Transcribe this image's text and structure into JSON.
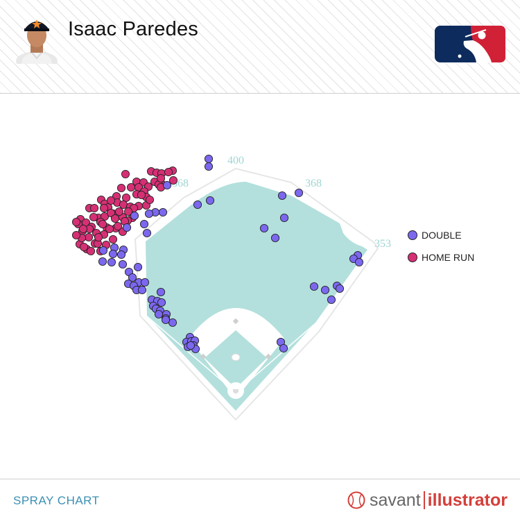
{
  "header": {
    "player_name": "Isaac Paredes"
  },
  "footer": {
    "chart_label": "SPRAY CHART",
    "brand_part1": "savant",
    "brand_part2": "illustrator"
  },
  "colors": {
    "double": "#7b68ee",
    "home_run": "#d63075",
    "field": "#b3e0dc",
    "distance_text": "#9ed6d2",
    "accent": "#3b8fb3",
    "mlb_blue": "#0d2b5c",
    "mlb_red": "#d12136"
  },
  "chart_data": {
    "type": "scatter",
    "legend_position": "top-right",
    "distances": [
      "368",
      "400",
      "368",
      "353"
    ],
    "series": [
      {
        "name": "DOUBLE",
        "color": "#7b68ee",
        "points": [
          [
            301,
            229
          ],
          [
            301,
            240
          ],
          [
            241,
            267
          ],
          [
            285,
            295
          ],
          [
            303,
            289
          ],
          [
            235,
            306
          ],
          [
            224,
            306
          ],
          [
            215,
            308
          ],
          [
            194,
            311
          ],
          [
            208,
            323
          ],
          [
            407,
            282
          ],
          [
            431,
            278
          ],
          [
            410,
            314
          ],
          [
            381,
            329
          ],
          [
            397,
            343
          ],
          [
            183,
            328
          ],
          [
            212,
            336
          ],
          [
            165,
            357
          ],
          [
            178,
            360
          ],
          [
            175,
            367
          ],
          [
            149,
            361
          ],
          [
            163,
            366
          ],
          [
            161,
            378
          ],
          [
            148,
            377
          ],
          [
            177,
            381
          ],
          [
            199,
            385
          ],
          [
            186,
            392
          ],
          [
            191,
            400
          ],
          [
            200,
            407
          ],
          [
            185,
            409
          ],
          [
            209,
            407
          ],
          [
            193,
            412
          ],
          [
            197,
            418
          ],
          [
            205,
            418
          ],
          [
            232,
            421
          ],
          [
            219,
            432
          ],
          [
            227,
            434
          ],
          [
            233,
            436
          ],
          [
            221,
            441
          ],
          [
            225,
            445
          ],
          [
            231,
            448
          ],
          [
            229,
            453
          ],
          [
            240,
            453
          ],
          [
            239,
            459
          ],
          [
            249,
            465
          ],
          [
            239,
            461
          ],
          [
            516,
            368
          ],
          [
            510,
            373
          ],
          [
            518,
            378
          ],
          [
            453,
            413
          ],
          [
            469,
            418
          ],
          [
            486,
            412
          ],
          [
            490,
            416
          ],
          [
            478,
            432
          ],
          [
            274,
            486
          ],
          [
            269,
            493
          ],
          [
            276,
            492
          ],
          [
            281,
            491
          ],
          [
            271,
            500
          ],
          [
            279,
            498
          ],
          [
            282,
            503
          ],
          [
            275,
            498
          ],
          [
            405,
            493
          ],
          [
            409,
            502
          ]
        ]
      },
      {
        "name": "HOME RUN",
        "color": "#d63075",
        "points": [
          [
            181,
            251
          ],
          [
            218,
            247
          ],
          [
            226,
            249
          ],
          [
            233,
            250
          ],
          [
            249,
            246
          ],
          [
            197,
            262
          ],
          [
            207,
            263
          ],
          [
            223,
            262
          ],
          [
            234,
            266
          ],
          [
            250,
            260
          ],
          [
            229,
            266
          ],
          [
            175,
            271
          ],
          [
            189,
            270
          ],
          [
            200,
            270
          ],
          [
            214,
            269
          ],
          [
            232,
            270
          ],
          [
            168,
            283
          ],
          [
            182,
            285
          ],
          [
            197,
            280
          ],
          [
            208,
            276
          ],
          [
            146,
            288
          ],
          [
            151,
            294
          ],
          [
            156,
            299
          ],
          [
            169,
            292
          ],
          [
            178,
            295
          ],
          [
            188,
            298
          ],
          [
            200,
            297
          ],
          [
            163,
            308
          ],
          [
            191,
            314
          ],
          [
            129,
            300
          ],
          [
            136,
            300
          ],
          [
            142,
            314
          ],
          [
            151,
            312
          ],
          [
            160,
            307
          ],
          [
            166,
            315
          ],
          [
            177,
            313
          ],
          [
            184,
            318
          ],
          [
            211,
            296
          ],
          [
            211,
            284
          ],
          [
            116,
            316
          ],
          [
            113,
            323
          ],
          [
            124,
            321
          ],
          [
            132,
            327
          ],
          [
            145,
            320
          ],
          [
            154,
            328
          ],
          [
            167,
            329
          ],
          [
            177,
            334
          ],
          [
            119,
            333
          ],
          [
            128,
            342
          ],
          [
            139,
            336
          ],
          [
            150,
            338
          ],
          [
            163,
            345
          ],
          [
            115,
            352
          ],
          [
            125,
            359
          ],
          [
            137,
            351
          ],
          [
            145,
            362
          ],
          [
            110,
            320
          ],
          [
            118,
            343
          ],
          [
            121,
            356
          ],
          [
            131,
            362
          ],
          [
            141,
            351
          ],
          [
            153,
            353
          ],
          [
            129,
            330
          ],
          [
            142,
            342
          ],
          [
            158,
            330
          ],
          [
            170,
            326
          ],
          [
            180,
            319
          ],
          [
            193,
            300
          ],
          [
            204,
            281
          ],
          [
            216,
            288
          ],
          [
            232,
            257
          ],
          [
            243,
            248
          ],
          [
            185,
            305
          ],
          [
            150,
            300
          ],
          [
            160,
            289
          ],
          [
            172,
            305
          ],
          [
            135,
            313
          ],
          [
            120,
            330
          ],
          [
            110,
            339
          ],
          [
            148,
            323
          ]
        ]
      }
    ]
  }
}
